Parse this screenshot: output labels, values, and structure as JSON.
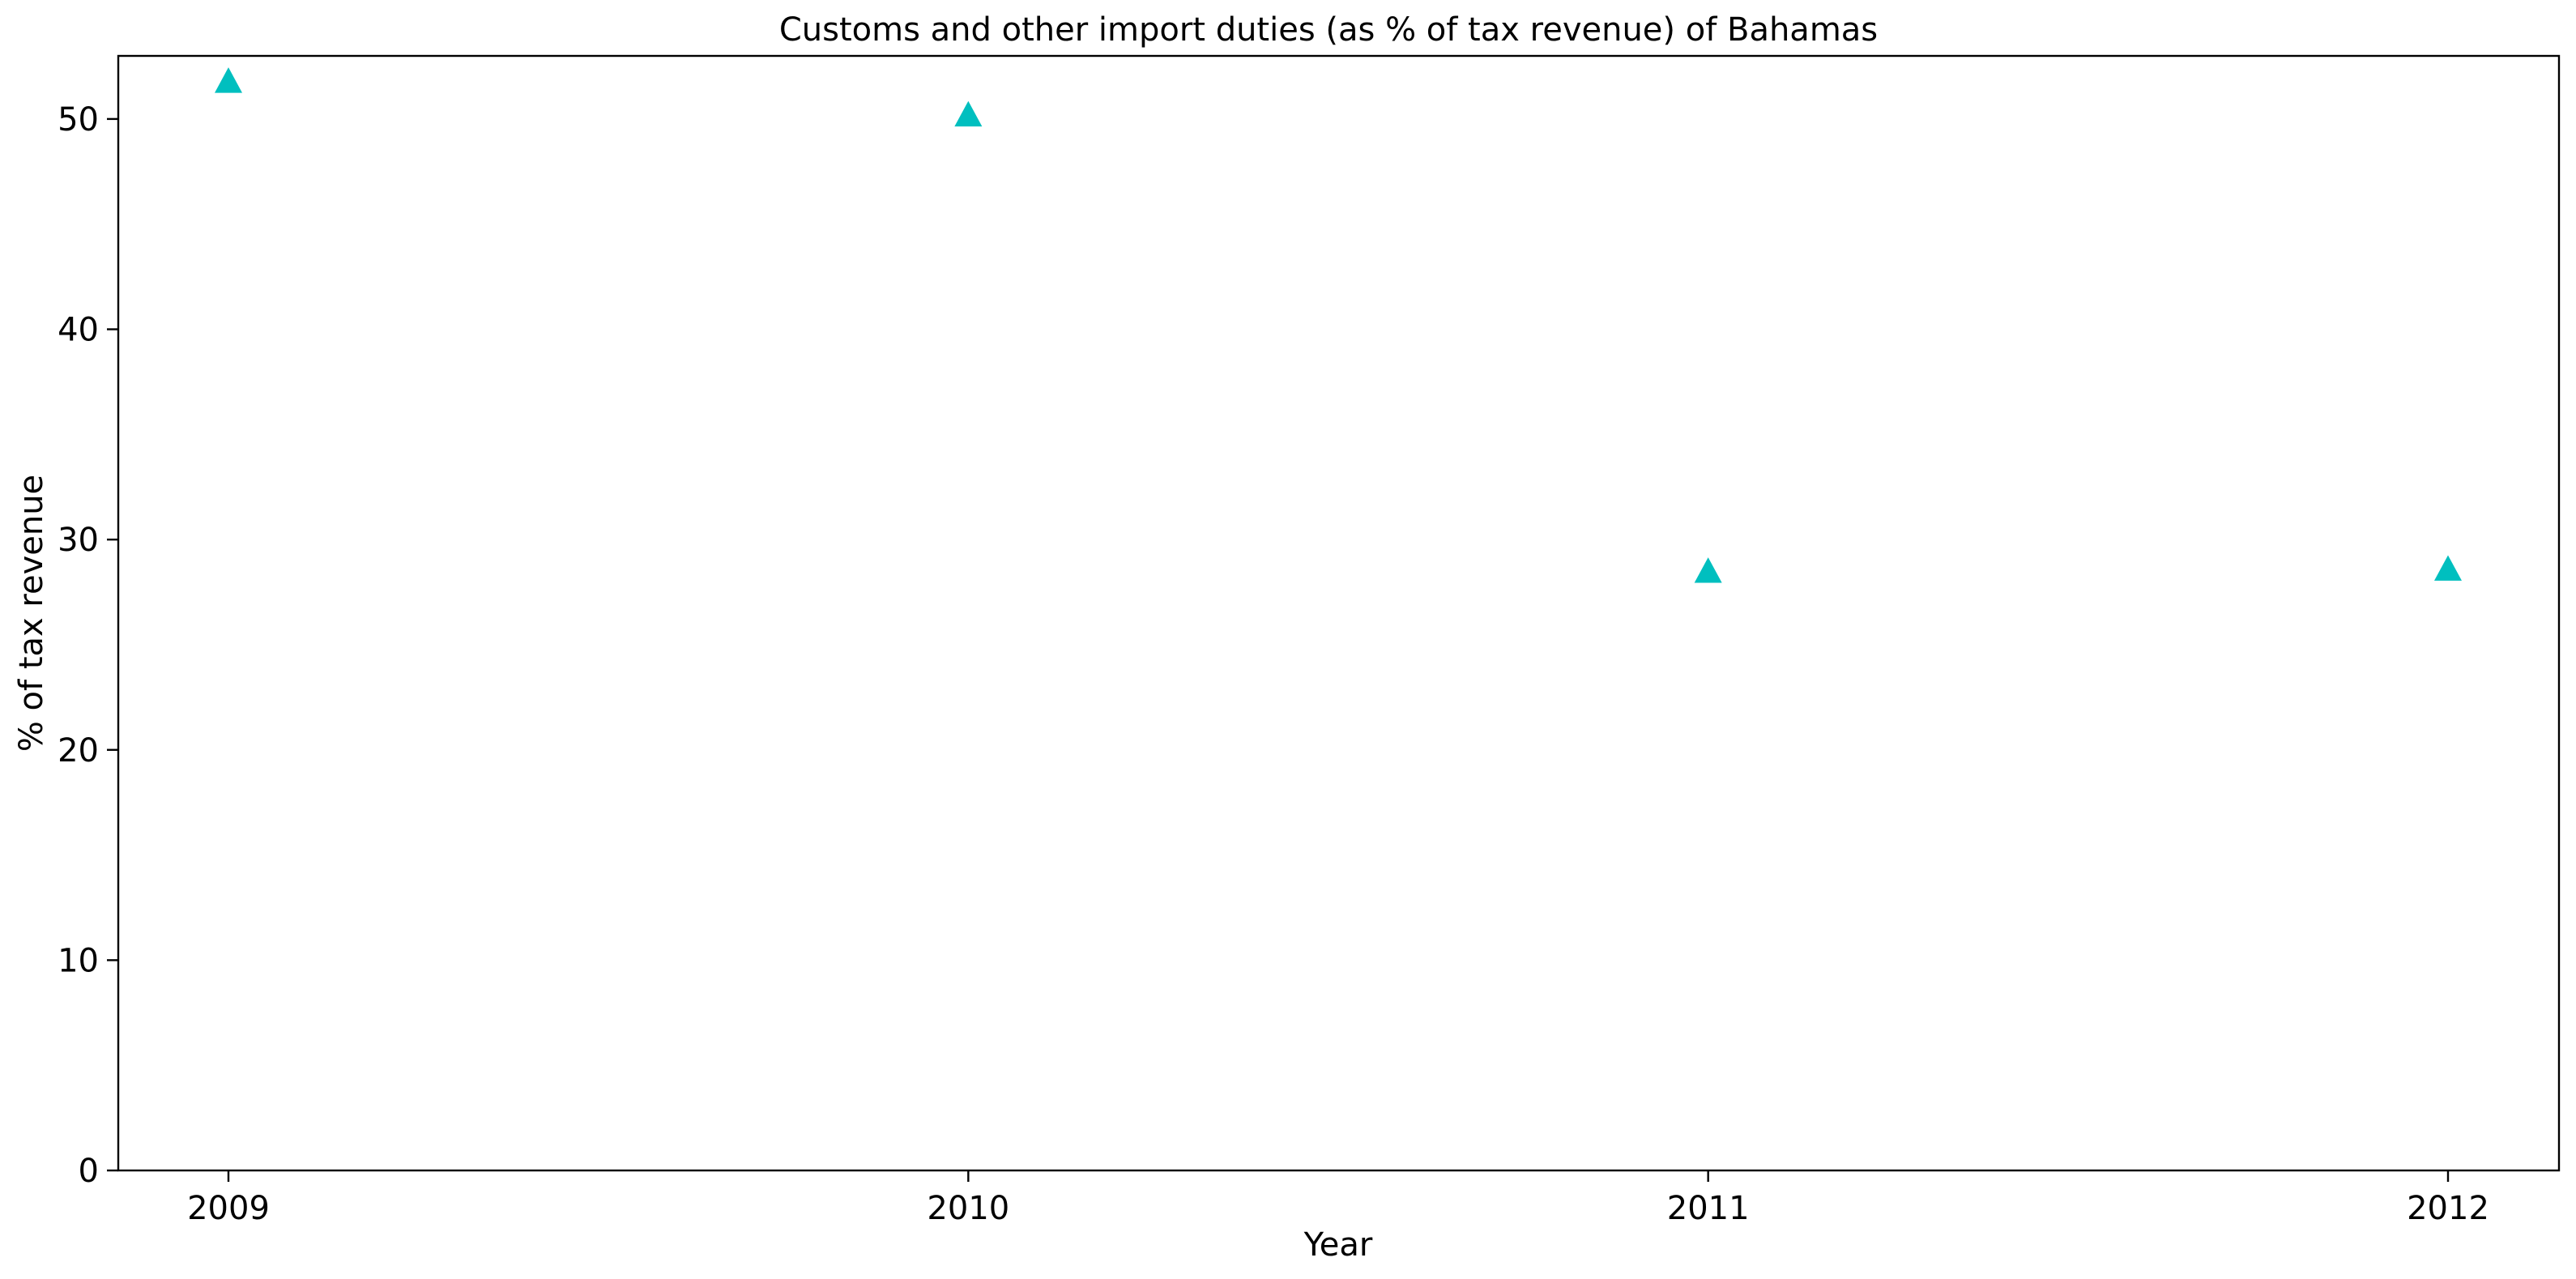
{
  "chart_data": {
    "type": "scatter",
    "title": "Customs and other import duties (as % of tax revenue) of Bahamas",
    "xlabel": "Year",
    "ylabel": "% of tax revenue",
    "x": [
      "2009",
      "2010",
      "2011",
      "2012"
    ],
    "y": [
      51.8,
      50.2,
      28.5,
      28.6
    ],
    "marker": "triangle-up",
    "marker_color": "#00BFBF",
    "ylim": [
      0,
      53
    ],
    "yticks": [
      0,
      10,
      20,
      30,
      40,
      50
    ],
    "xticks": [
      "2009",
      "2010",
      "2011",
      "2012"
    ],
    "grid": false,
    "legend": "none"
  }
}
